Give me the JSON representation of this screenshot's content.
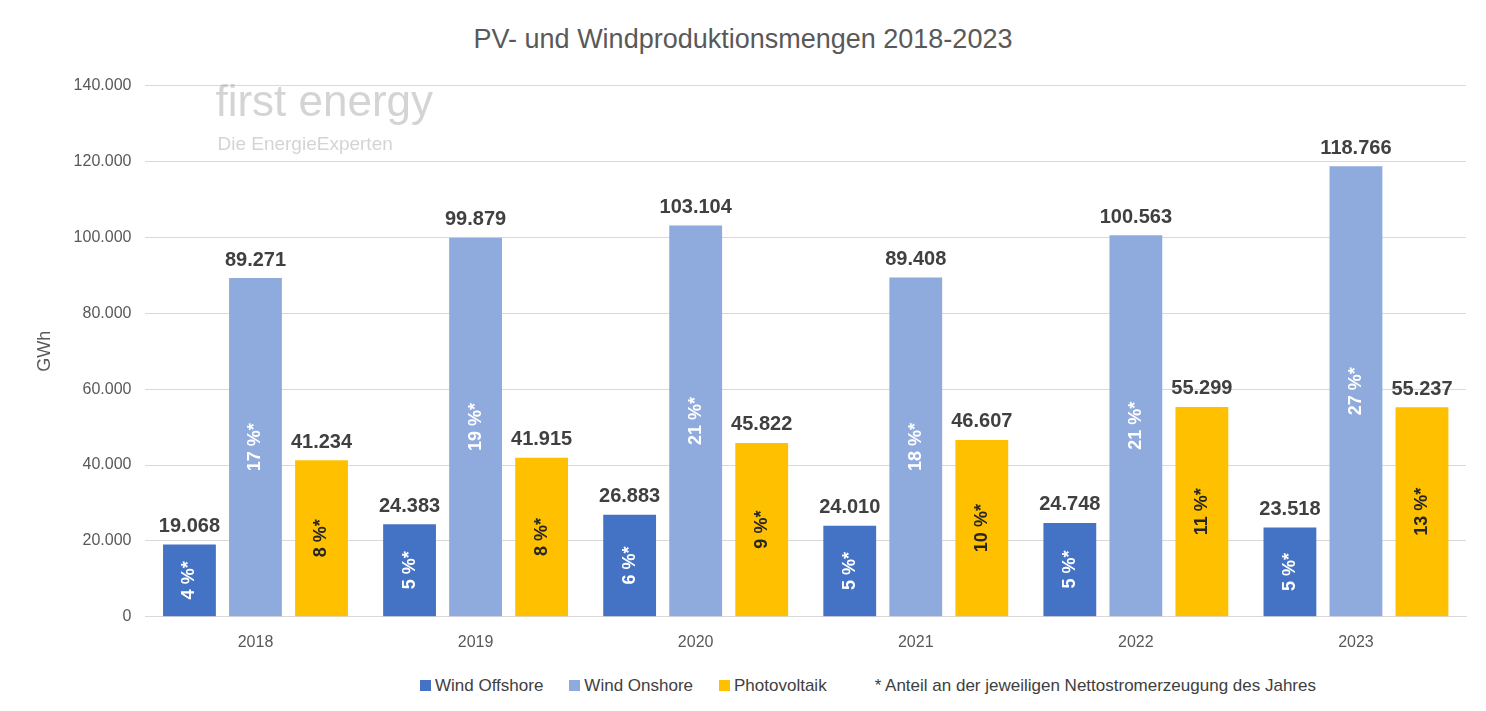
{
  "chart_data": {
    "type": "bar",
    "title": "PV- und Windproduktionsmengen 2018-2023",
    "y_label": "GWh",
    "categories": [
      "2018",
      "2019",
      "2020",
      "2021",
      "2022",
      "2023"
    ],
    "series": [
      {
        "name": "Wind Offshore",
        "color": "#4472c4",
        "values": [
          19068,
          24383,
          26883,
          24010,
          24748,
          23518
        ],
        "value_labels": [
          "19.068",
          "24.383",
          "26.883",
          "24.010",
          "24.748",
          "23.518"
        ],
        "shares": [
          4,
          5,
          6,
          5,
          5,
          5
        ],
        "share_labels": [
          "4 %*",
          "5 %*",
          "6 %*",
          "5 %*",
          "5 %*",
          "5 %*"
        ]
      },
      {
        "name": "Wind Onshore",
        "color": "#8faadc",
        "values": [
          89271,
          99879,
          103104,
          89408,
          100563,
          118766
        ],
        "value_labels": [
          "89.271",
          "99.879",
          "103.104",
          "89.408",
          "100.563",
          "118.766"
        ],
        "shares": [
          17,
          19,
          21,
          18,
          21,
          27
        ],
        "share_labels": [
          "17 %*",
          "19 %*",
          "21 %*",
          "18 %*",
          "21 %*",
          "27 %*"
        ]
      },
      {
        "name": "Photovoltaik",
        "color": "#ffc000",
        "values": [
          41234,
          41915,
          45822,
          46607,
          55299,
          55237
        ],
        "value_labels": [
          "41.234",
          "41.915",
          "45.822",
          "46.607",
          "55.299",
          "55.237"
        ],
        "shares": [
          8,
          8,
          9,
          10,
          11,
          13
        ],
        "share_labels": [
          "8 %*",
          "8 %*",
          "9 %*",
          "10 %*",
          "11 %*",
          "13 %*"
        ]
      }
    ],
    "ylim": [
      0,
      140000
    ],
    "yticks": [
      0,
      {
        "value": 20000,
        "label": "20.000"
      },
      {
        "value": 40000,
        "label": "40.000"
      },
      {
        "value": 60000,
        "label": "60.000"
      },
      {
        "value": 80000,
        "label": "80.000"
      },
      {
        "value": 100000,
        "label": "100.000"
      },
      {
        "value": 120000,
        "label": "120.000"
      },
      {
        "value": 140000,
        "label": "140.000"
      }
    ],
    "grid": true,
    "legend": "bottom",
    "data_labels": true,
    "annotations": [
      "* Anteil an der jeweiligen Nettostromerzeugung des Jahres",
      "first energy",
      "Die EnergieExperten"
    ]
  }
}
